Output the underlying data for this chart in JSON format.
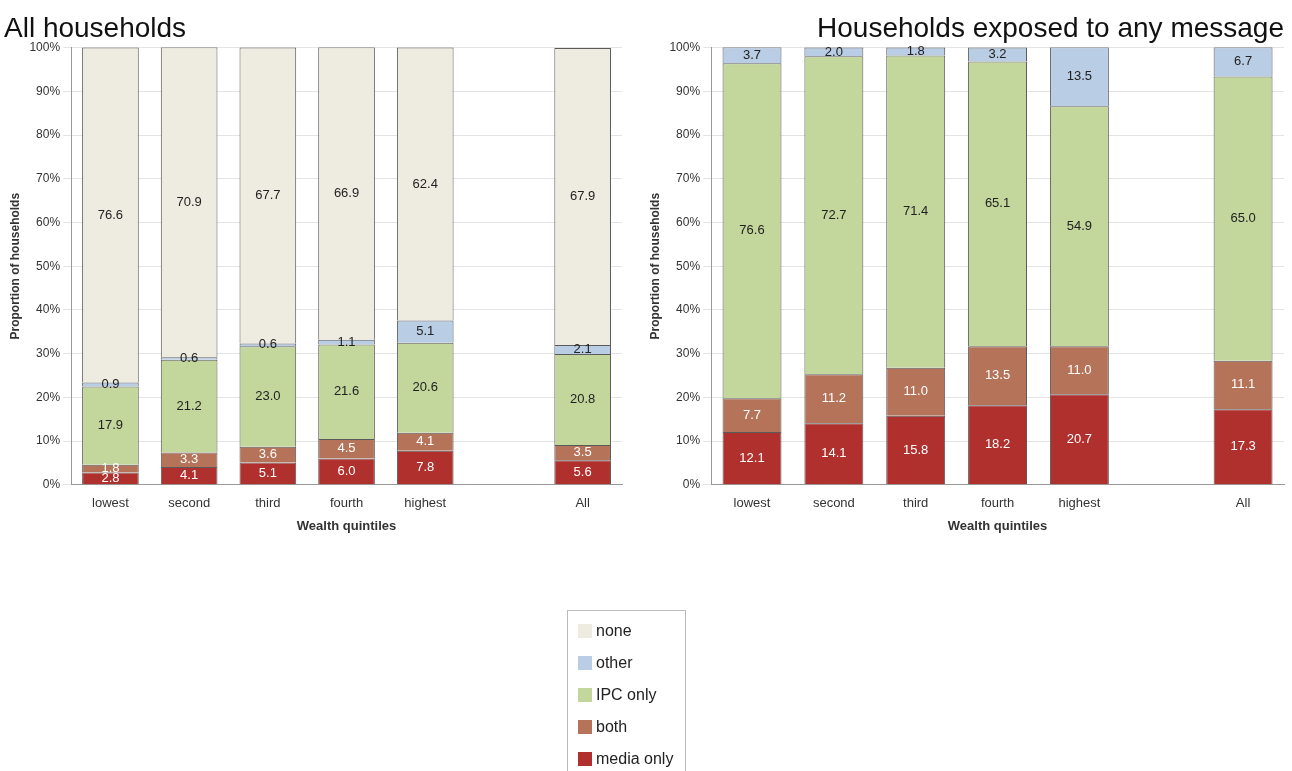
{
  "chart_data": [
    {
      "type": "bar",
      "title": "All households",
      "xlabel": "Wealth quintiles",
      "ylabel": "Proportion of households",
      "stacked": true,
      "grid": "y",
      "legend": "bottom",
      "categories": [
        "lowest",
        "second",
        "third",
        "fourth",
        "highest",
        null,
        "All"
      ],
      "ylim": [
        0,
        100
      ],
      "yticks": [
        {
          "value": 0,
          "label": "0%"
        },
        {
          "value": 10,
          "label": "10%"
        },
        {
          "value": 20,
          "label": "20%"
        },
        {
          "value": 30,
          "label": "30%"
        },
        {
          "value": 40,
          "label": "40%"
        },
        {
          "value": 50,
          "label": "50%"
        },
        {
          "value": 60,
          "label": "60%"
        },
        {
          "value": 70,
          "label": "70%"
        },
        {
          "value": 80,
          "label": "80%"
        },
        {
          "value": 90,
          "label": "90%"
        },
        {
          "value": 100,
          "label": "100%"
        }
      ],
      "series": [
        {
          "name": "media only",
          "color": "#b0302e",
          "values": [
            2.8,
            4.1,
            5.1,
            6.0,
            7.8,
            null,
            5.6
          ],
          "value_labels": [
            "2.8",
            "4.1",
            "5.1",
            "6.0",
            "7.8",
            null,
            "5.6"
          ]
        },
        {
          "name": "both",
          "color": "#b5735a",
          "values": [
            1.8,
            3.3,
            3.6,
            4.5,
            4.1,
            null,
            3.5
          ],
          "value_labels": [
            "1.8",
            "3.3",
            "3.6",
            "4.5",
            "4.1",
            null,
            "3.5"
          ]
        },
        {
          "name": "IPC only",
          "color": "#c3d69b",
          "values": [
            17.9,
            21.2,
            23.0,
            21.6,
            20.6,
            null,
            20.8
          ],
          "value_labels": [
            "17.9",
            "21.2",
            "23.0",
            "21.6",
            "20.6",
            null,
            "20.8"
          ]
        },
        {
          "name": "other",
          "color": "#b9cde5",
          "values": [
            0.9,
            0.6,
            0.6,
            1.1,
            5.1,
            null,
            2.1
          ],
          "value_labels": [
            "0.9",
            "0.6",
            "0.6",
            "1.1",
            "5.1",
            null,
            "2.1"
          ]
        },
        {
          "name": "none",
          "color": "#eeece1",
          "values": [
            76.6,
            70.9,
            67.7,
            66.9,
            62.4,
            null,
            67.9
          ],
          "value_labels": [
            "76.6",
            "70.9",
            "67.7",
            "66.9",
            "62.4",
            null,
            "67.9"
          ]
        }
      ]
    },
    {
      "type": "bar",
      "title": "Households exposed to any message",
      "xlabel": "Wealth quintiles",
      "ylabel": "Proportion of households",
      "stacked": true,
      "grid": "y",
      "categories": [
        "lowest",
        "second",
        "third",
        "fourth",
        "highest",
        null,
        "All"
      ],
      "ylim": [
        0,
        100
      ],
      "yticks": [
        {
          "value": 0,
          "label": "0%"
        },
        {
          "value": 10,
          "label": "10%"
        },
        {
          "value": 20,
          "label": "20%"
        },
        {
          "value": 30,
          "label": "30%"
        },
        {
          "value": 40,
          "label": "40%"
        },
        {
          "value": 50,
          "label": "50%"
        },
        {
          "value": 60,
          "label": "60%"
        },
        {
          "value": 70,
          "label": "70%"
        },
        {
          "value": 80,
          "label": "80%"
        },
        {
          "value": 90,
          "label": "90%"
        },
        {
          "value": 100,
          "label": "100%"
        }
      ],
      "series": [
        {
          "color": "#b0302e",
          "values": [
            12.1,
            14.1,
            15.8,
            18.2,
            20.7,
            null,
            17.3
          ],
          "value_labels": [
            "12.1",
            "14.1",
            "15.8",
            "18.2",
            "20.7",
            null,
            "17.3"
          ]
        },
        {
          "color": "#b5735a",
          "values": [
            7.7,
            11.2,
            11.0,
            13.5,
            11.0,
            null,
            11.1
          ],
          "value_labels": [
            "7.7",
            "11.2",
            "11.0",
            "13.5",
            "11.0",
            null,
            "11.1"
          ]
        },
        {
          "color": "#c3d69b",
          "values": [
            76.6,
            72.7,
            71.4,
            65.1,
            54.9,
            null,
            65.0
          ],
          "value_labels": [
            "76.6",
            "72.7",
            "71.4",
            "65.1",
            "54.9",
            null,
            "65.0"
          ]
        },
        {
          "color": "#b9cde5",
          "values": [
            3.7,
            2.0,
            1.8,
            3.2,
            13.5,
            null,
            6.7
          ],
          "value_labels": [
            "3.7",
            "2.0",
            "1.8",
            "3.2",
            "13.5",
            null,
            "6.7"
          ]
        }
      ]
    }
  ]
}
